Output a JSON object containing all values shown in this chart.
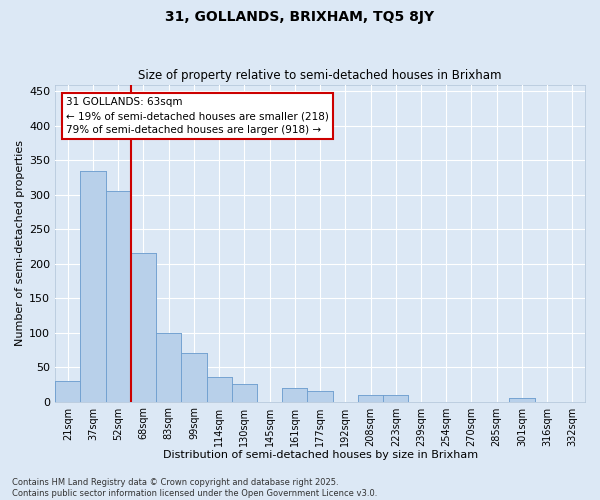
{
  "title_line1": "31, GOLLANDS, BRIXHAM, TQ5 8JY",
  "title_line2": "Size of property relative to semi-detached houses in Brixham",
  "xlabel": "Distribution of semi-detached houses by size in Brixham",
  "ylabel": "Number of semi-detached properties",
  "bin_labels": [
    "21sqm",
    "37sqm",
    "52sqm",
    "68sqm",
    "83sqm",
    "99sqm",
    "114sqm",
    "130sqm",
    "145sqm",
    "161sqm",
    "177sqm",
    "192sqm",
    "208sqm",
    "223sqm",
    "239sqm",
    "254sqm",
    "270sqm",
    "285sqm",
    "301sqm",
    "316sqm",
    "332sqm"
  ],
  "bar_heights": [
    30,
    335,
    305,
    215,
    100,
    70,
    35,
    25,
    0,
    20,
    15,
    0,
    10,
    10,
    0,
    0,
    0,
    0,
    5,
    0,
    0
  ],
  "bar_color": "#b8d0ea",
  "bar_edge_color": "#6699cc",
  "background_color": "#dce8f5",
  "grid_color": "#ffffff",
  "property_line_label": "31 GOLLANDS: 63sqm",
  "annotation_line1": "← 19% of semi-detached houses are smaller (218)",
  "annotation_line2": "79% of semi-detached houses are larger (918) →",
  "annotation_box_color": "#ffffff",
  "annotation_box_edge": "#cc0000",
  "line_color": "#cc0000",
  "line_x_index": 2.5,
  "ylim": [
    0,
    460
  ],
  "yticks": [
    0,
    50,
    100,
    150,
    200,
    250,
    300,
    350,
    400,
    450
  ],
  "footnote": "Contains HM Land Registry data © Crown copyright and database right 2025.\nContains public sector information licensed under the Open Government Licence v3.0."
}
